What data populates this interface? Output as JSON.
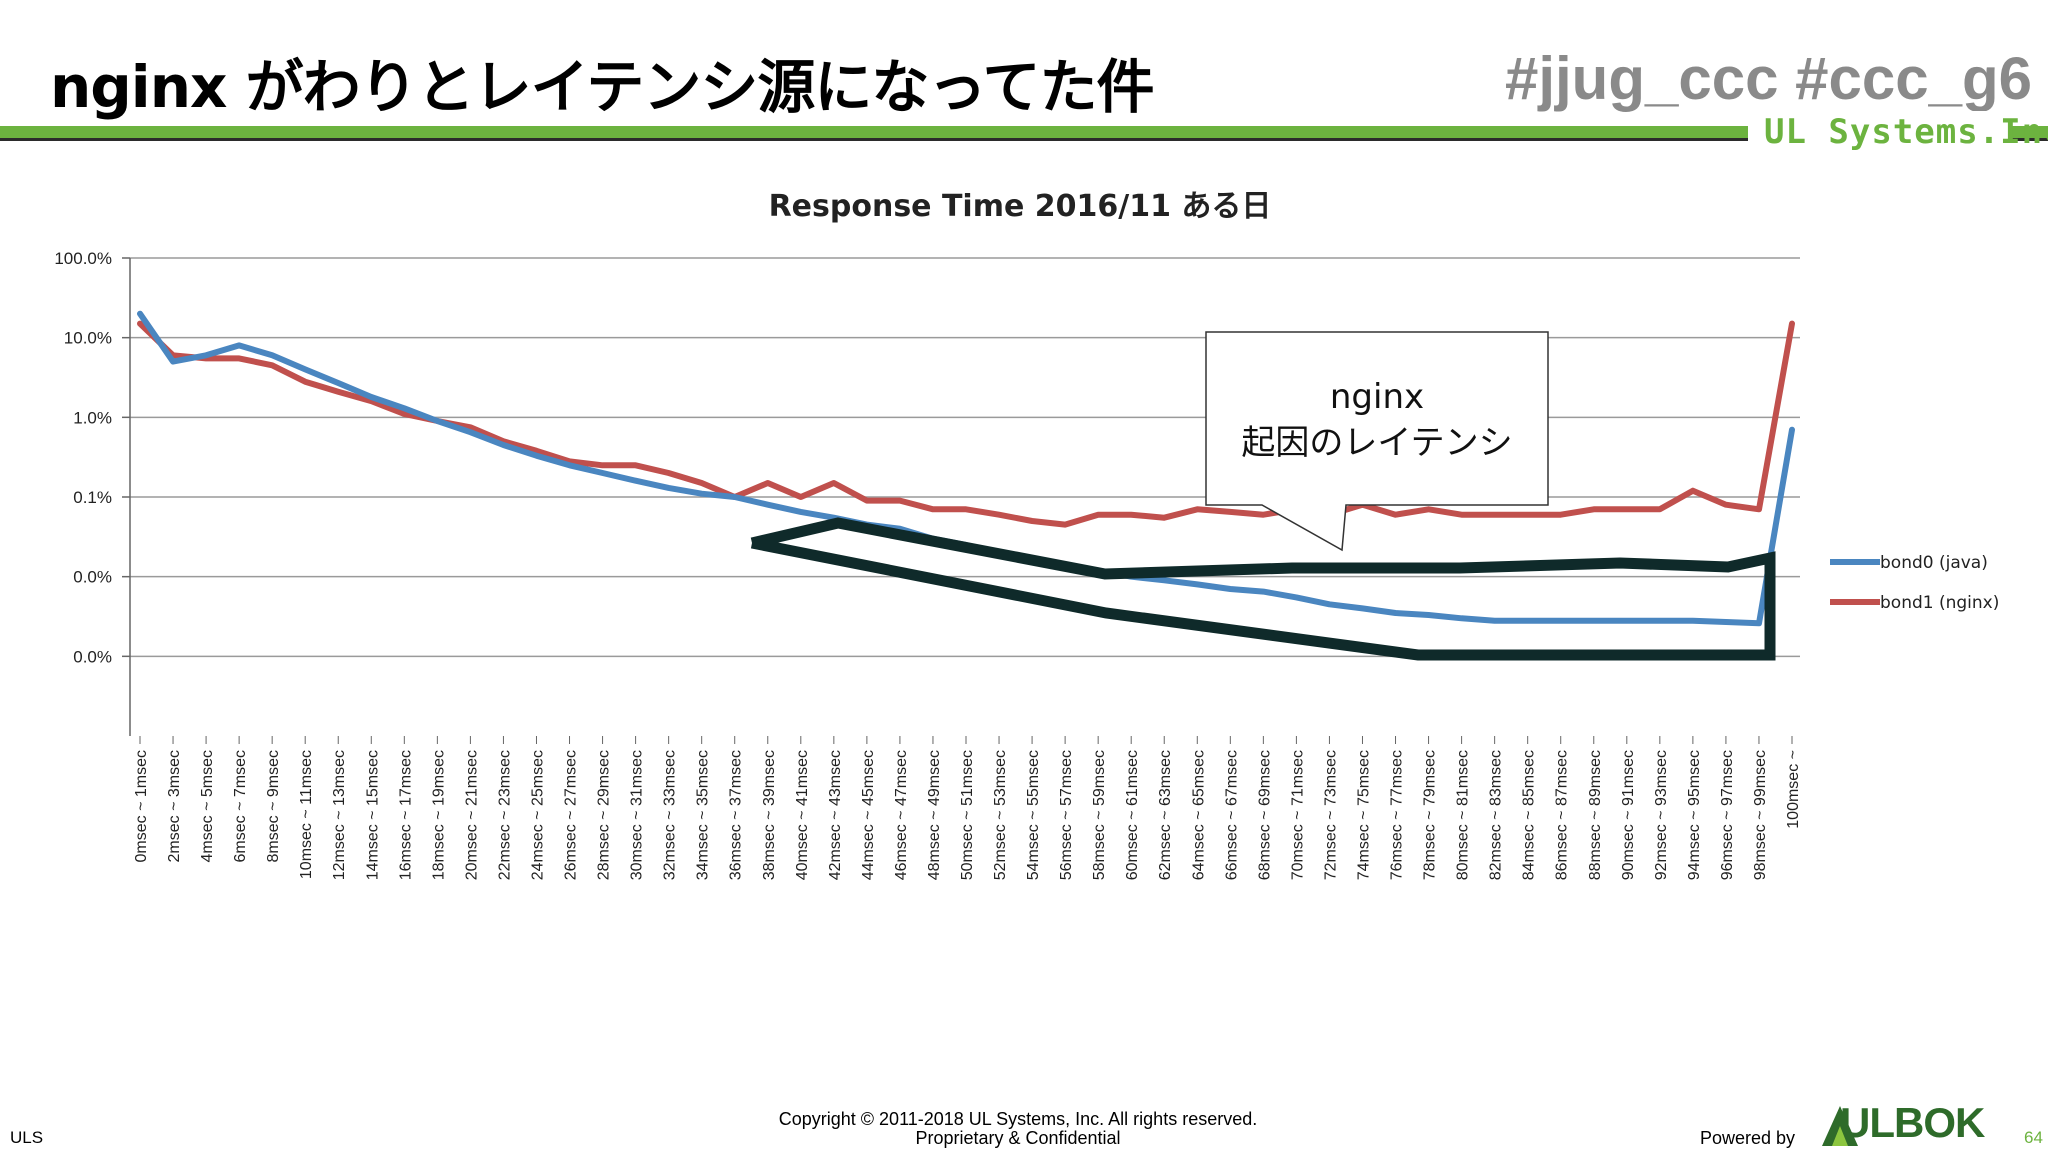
{
  "slide": {
    "title": "nginx がわりとレイテンシ源になってた件",
    "hashtags": "#jjug_ccc  #ccc_g6",
    "logo": "UL Systems.Inc."
  },
  "callout": {
    "line1": "nginx",
    "line2": "起因のレイテンシ"
  },
  "footer": {
    "left": "ULS",
    "copyright": "Copyright © 2011-2018 UL Systems, Inc.  All rights reserved.",
    "confidential": "Proprietary & Confidential",
    "powered": "Powered by",
    "brand": "ULBOK",
    "page": "64"
  },
  "colors": {
    "accent_green": "#6cb33f",
    "bond0": "#4a86c0",
    "bond1": "#c0504d",
    "annotation": "#0f2a2a"
  },
  "chart_data": {
    "type": "line",
    "title": "Response Time  2016/11 ある日",
    "yscale": "log",
    "ylim": [
      0.0001,
      100
    ],
    "ytick_labels": [
      "100.0%",
      "10.0%",
      "1.0%",
      "0.1%",
      "0.0%",
      "0.0%"
    ],
    "ytick_values": [
      100,
      10,
      1,
      0.1,
      0.01,
      0.001
    ],
    "grid": true,
    "legend_position": "right",
    "categories": [
      "0msec ~ 1msec",
      "2msec ~ 3msec",
      "4msec ~ 5msec",
      "6msec ~ 7msec",
      "8msec ~ 9msec",
      "10msec ~ 11msec",
      "12msec ~ 13msec",
      "14msec ~ 15msec",
      "16msec ~ 17msec",
      "18msec ~ 19msec",
      "20msec ~ 21msec",
      "22msec ~ 23msec",
      "24msec ~ 25msec",
      "26msec ~ 27msec",
      "28msec ~ 29msec",
      "30msec ~ 31msec",
      "32msec ~ 33msec",
      "34msec ~ 35msec",
      "36msec ~ 37msec",
      "38msec ~ 39msec",
      "40msec ~ 41msec",
      "42msec ~ 43msec",
      "44msec ~ 45msec",
      "46msec ~ 47msec",
      "48msec ~ 49msec",
      "50msec ~ 51msec",
      "52msec ~ 53msec",
      "54msec ~ 55msec",
      "56msec ~ 57msec",
      "58msec ~ 59msec",
      "60msec ~ 61msec",
      "62msec ~ 63msec",
      "64msec ~ 65msec",
      "66msec ~ 67msec",
      "68msec ~ 69msec",
      "70msec ~ 71msec",
      "72msec ~ 73msec",
      "74msec ~ 75msec",
      "76msec ~ 77msec",
      "78msec ~ 79msec",
      "80msec ~ 81msec",
      "82msec ~ 83msec",
      "84msec ~ 85msec",
      "86msec ~ 87msec",
      "88msec ~ 89msec",
      "90msec ~ 91msec",
      "92msec ~ 93msec",
      "94msec ~ 95msec",
      "96msec ~ 97msec",
      "98msec ~ 99msec",
      "100msec ~"
    ],
    "series": [
      {
        "name": "bond0 (java)",
        "color": "#4a86c0",
        "values": [
          20,
          5,
          6,
          8,
          6,
          4,
          2.7,
          1.8,
          1.3,
          0.9,
          0.65,
          0.45,
          0.33,
          0.25,
          0.2,
          0.16,
          0.13,
          0.11,
          0.1,
          0.08,
          0.065,
          0.055,
          0.045,
          0.04,
          0.03,
          0.025,
          0.02,
          0.017,
          0.014,
          0.012,
          0.01,
          0.009,
          0.008,
          0.007,
          0.0065,
          0.0055,
          0.0045,
          0.004,
          0.0035,
          0.0033,
          0.003,
          0.0028,
          0.0028,
          0.0028,
          0.0028,
          0.0028,
          0.0028,
          0.0028,
          0.0027,
          0.0026,
          0.7
        ]
      },
      {
        "name": "bond1 (nginx)",
        "color": "#c0504d",
        "values": [
          15,
          6,
          5.5,
          5.5,
          4.5,
          2.8,
          2.1,
          1.6,
          1.1,
          0.9,
          0.75,
          0.5,
          0.38,
          0.28,
          0.25,
          0.25,
          0.2,
          0.15,
          0.1,
          0.15,
          0.1,
          0.15,
          0.09,
          0.09,
          0.07,
          0.07,
          0.06,
          0.05,
          0.045,
          0.06,
          0.06,
          0.055,
          0.07,
          0.065,
          0.06,
          0.07,
          0.06,
          0.08,
          0.06,
          0.07,
          0.06,
          0.06,
          0.06,
          0.06,
          0.07,
          0.07,
          0.07,
          0.12,
          0.08,
          0.07,
          15
        ]
      }
    ]
  }
}
